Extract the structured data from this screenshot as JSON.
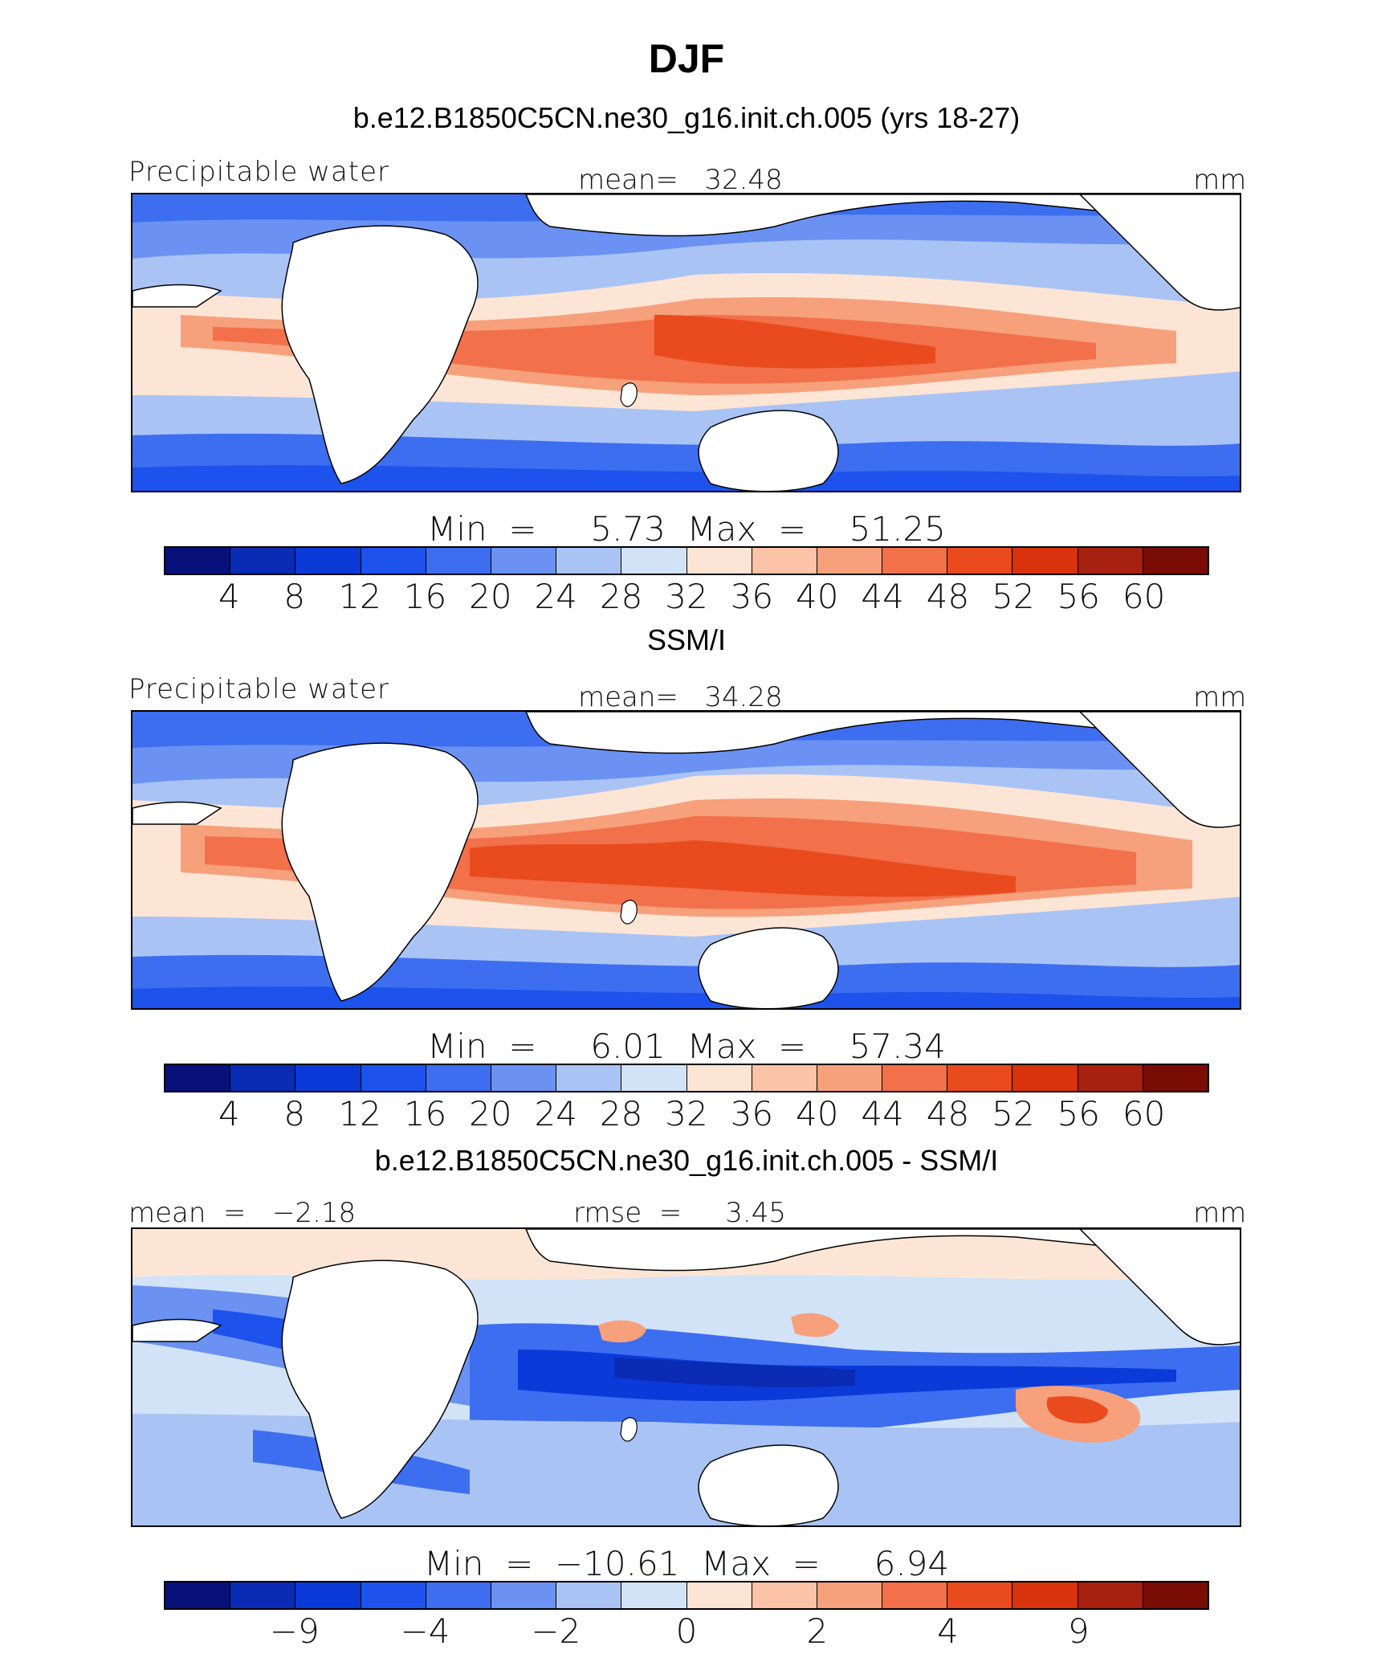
{
  "title": "DJF",
  "panels": [
    {
      "subtitle": "b.e12.B1850C5CN.ne30_g16.init.ch.005 (yrs 18-27)",
      "left_label": "Precipitable water",
      "center_label": "mean=   32.48",
      "right_label": "mm",
      "minmax": "Min  =     5.73  Max  =    51.25",
      "ticks": [
        "4",
        "8",
        "12",
        "16",
        "20",
        "24",
        "28",
        "32",
        "36",
        "40",
        "44",
        "48",
        "52",
        "56",
        "60"
      ]
    },
    {
      "subtitle": "SSM/I",
      "left_label": "Precipitable water",
      "center_label": "mean=   34.28",
      "right_label": "mm",
      "minmax": "Min  =     6.01  Max  =    57.34",
      "ticks": [
        "4",
        "8",
        "12",
        "16",
        "20",
        "24",
        "28",
        "32",
        "36",
        "40",
        "44",
        "48",
        "52",
        "56",
        "60"
      ]
    },
    {
      "subtitle": "b.e12.B1850C5CN.ne30_g16.init.ch.005 - SSM/I",
      "left_label": "mean  =   −2.18",
      "center_label": "rmse  =     3.45",
      "right_label": "mm",
      "minmax": "Min  =  −10.61  Max  =     6.94",
      "ticks": [
        "−9",
        "−4",
        "−2",
        "0",
        "2",
        "4",
        "9"
      ]
    }
  ],
  "colorbar_colors": [
    "#08107a",
    "#0a2bb4",
    "#0b3ad8",
    "#1d52ec",
    "#3d6ef0",
    "#6b92f2",
    "#a9c3f5",
    "#d2e3f8",
    "#fde5d6",
    "#fbc3a7",
    "#f7a07c",
    "#f2704a",
    "#e94a1e",
    "#d8330c",
    "#a82110",
    "#7a0c06"
  ],
  "chart_data": {
    "type": "heatmap",
    "title": "DJF",
    "variable": "Precipitable water",
    "units": "mm",
    "panels": [
      {
        "name": "b.e12.B1850C5CN.ne30_g16.init.ch.005 (yrs 18-27)",
        "mean": 32.48,
        "min": 5.73,
        "max": 51.25,
        "levels": [
          4,
          8,
          12,
          16,
          20,
          24,
          28,
          32,
          36,
          40,
          44,
          48,
          52,
          56,
          60
        ]
      },
      {
        "name": "SSM/I",
        "mean": 34.28,
        "min": 6.01,
        "max": 57.34,
        "levels": [
          4,
          8,
          12,
          16,
          20,
          24,
          28,
          32,
          36,
          40,
          44,
          48,
          52,
          56,
          60
        ]
      },
      {
        "name": "b.e12.B1850C5CN.ne30_g16.init.ch.005 - SSM/I",
        "mean": -2.18,
        "rmse": 3.45,
        "min": -10.61,
        "max": 6.94,
        "levels": [
          -9,
          -4,
          -2,
          0,
          2,
          4,
          9
        ]
      }
    ]
  }
}
